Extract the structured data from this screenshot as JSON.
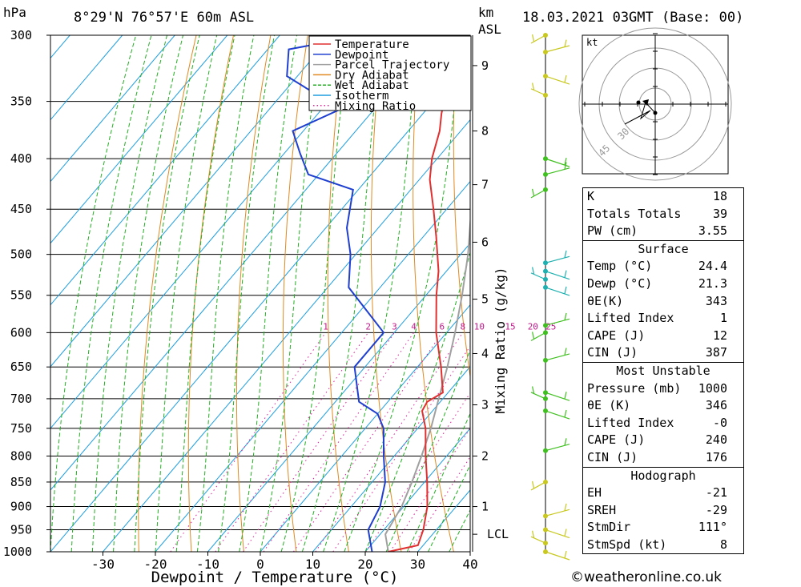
{
  "header": {
    "location": "8°29'N  76°57'E  60m  ASL",
    "datetime": "18.03.2021  03GMT  (Base: 00)",
    "pressure_unit": "hPa",
    "height_unit": "km",
    "height_unit2": "ASL"
  },
  "chart_data": {
    "type": "skew-t",
    "xlabel": "Dewpoint / Temperature (°C)",
    "mixing_ratio_label": "Mixing Ratio (g/kg)",
    "xlim": [
      -40,
      40
    ],
    "x_ticks": [
      "-30",
      "-20",
      "-10",
      "0",
      "10",
      "20",
      "30",
      "40"
    ],
    "pressure_levels": [
      300,
      350,
      400,
      450,
      500,
      550,
      600,
      650,
      700,
      750,
      800,
      850,
      900,
      950,
      1000
    ],
    "height_ticks_km": [
      {
        "label": "9",
        "p": 322
      },
      {
        "label": "8",
        "p": 375
      },
      {
        "label": "7",
        "p": 425
      },
      {
        "label": "6",
        "p": 486
      },
      {
        "label": "5",
        "p": 555
      },
      {
        "label": "4",
        "p": 630
      },
      {
        "label": "3",
        "p": 710
      },
      {
        "label": "2",
        "p": 800
      },
      {
        "label": "1",
        "p": 900
      },
      {
        "label": "LCL",
        "p": 960
      }
    ],
    "mixing_ratio_values": [
      "1",
      "2",
      "3",
      "4",
      "6",
      "8",
      "10",
      "15",
      "20",
      "25"
    ],
    "legend": [
      {
        "name": "Temperature",
        "color": "#e03030",
        "style": "solid"
      },
      {
        "name": "Dewpoint",
        "color": "#1f3fd0",
        "style": "solid"
      },
      {
        "name": "Parcel Trajectory",
        "color": "#a0a0a0",
        "style": "solid"
      },
      {
        "name": "Dry Adiabat",
        "color": "#e08a20",
        "style": "solid"
      },
      {
        "name": "Wet Adiabat",
        "color": "#20b020",
        "style": "dashed"
      },
      {
        "name": "Isotherm",
        "color": "#1e9ee0",
        "style": "solid"
      },
      {
        "name": "Mixing Ratio",
        "color": "#e0209a",
        "style": "dotted"
      }
    ],
    "temperature": [
      {
        "p": 1000,
        "t": 24.4
      },
      {
        "p": 985,
        "t": 29
      },
      {
        "p": 950,
        "t": 27.5
      },
      {
        "p": 900,
        "t": 24.5
      },
      {
        "p": 850,
        "t": 20.5
      },
      {
        "p": 800,
        "t": 16
      },
      {
        "p": 750,
        "t": 11.5
      },
      {
        "p": 720,
        "t": 8
      },
      {
        "p": 705,
        "t": 7.5
      },
      {
        "p": 690,
        "t": 9
      },
      {
        "p": 650,
        "t": 4.5
      },
      {
        "p": 600,
        "t": -2
      },
      {
        "p": 550,
        "t": -8
      },
      {
        "p": 520,
        "t": -11.5
      },
      {
        "p": 480,
        "t": -17.5
      },
      {
        "p": 450,
        "t": -22.5
      },
      {
        "p": 420,
        "t": -28
      },
      {
        "p": 400,
        "t": -31
      },
      {
        "p": 375,
        "t": -34
      },
      {
        "p": 360,
        "t": -36.5
      },
      {
        "p": 330,
        "t": -41
      },
      {
        "p": 300,
        "t": -47
      }
    ],
    "dewpoint": [
      {
        "p": 1000,
        "t": 21.3
      },
      {
        "p": 950,
        "t": 17
      },
      {
        "p": 900,
        "t": 15.5
      },
      {
        "p": 850,
        "t": 12.5
      },
      {
        "p": 800,
        "t": 8
      },
      {
        "p": 750,
        "t": 3.5
      },
      {
        "p": 725,
        "t": 0
      },
      {
        "p": 705,
        "t": -5.5
      },
      {
        "p": 650,
        "t": -12
      },
      {
        "p": 600,
        "t": -12
      },
      {
        "p": 540,
        "t": -26
      },
      {
        "p": 500,
        "t": -31
      },
      {
        "p": 470,
        "t": -36
      },
      {
        "p": 430,
        "t": -41
      },
      {
        "p": 415,
        "t": -52
      },
      {
        "p": 395,
        "t": -57
      },
      {
        "p": 375,
        "t": -62
      },
      {
        "p": 355,
        "t": -56
      },
      {
        "p": 340,
        "t": -66
      },
      {
        "p": 330,
        "t": -72
      },
      {
        "p": 310,
        "t": -76
      },
      {
        "p": 300,
        "t": -64
      }
    ],
    "parcel": [
      {
        "p": 1000,
        "t": 24.4
      },
      {
        "p": 960,
        "t": 21
      },
      {
        "p": 900,
        "t": 19.6
      },
      {
        "p": 850,
        "t": 17.6
      },
      {
        "p": 800,
        "t": 15.2
      },
      {
        "p": 750,
        "t": 12.5
      },
      {
        "p": 700,
        "t": 9.2
      },
      {
        "p": 650,
        "t": 5.7
      },
      {
        "p": 600,
        "t": 1.6
      },
      {
        "p": 550,
        "t": -3.1
      },
      {
        "p": 500,
        "t": -8.6
      },
      {
        "p": 450,
        "t": -15.3
      },
      {
        "p": 400,
        "t": -23.2
      },
      {
        "p": 365,
        "t": -29.6
      }
    ],
    "wind_barbs_p": [
      300,
      312,
      330,
      345,
      400,
      415,
      430,
      510,
      520,
      530,
      540,
      590,
      600,
      640,
      690,
      700,
      720,
      790,
      850,
      920,
      950,
      980,
      1000
    ]
  },
  "hodograph": {
    "unit": "kt",
    "ring_labels": [
      "30",
      "45"
    ]
  },
  "indices": {
    "general": [
      {
        "label": "K",
        "value": "18"
      },
      {
        "label": "Totals Totals",
        "value": "39"
      },
      {
        "label": "PW (cm)",
        "value": "3.55"
      }
    ],
    "surface_title": "Surface",
    "surface": [
      {
        "label": "Temp (°C)",
        "value": "24.4"
      },
      {
        "label": "Dewp (°C)",
        "value": "21.3"
      },
      {
        "label": "θE(K)",
        "value": "343"
      },
      {
        "label": "Lifted Index",
        "value": "1"
      },
      {
        "label": "CAPE (J)",
        "value": "12"
      },
      {
        "label": "CIN (J)",
        "value": "387"
      }
    ],
    "mu_title": "Most Unstable",
    "most_unstable": [
      {
        "label": "Pressure (mb)",
        "value": "1000"
      },
      {
        "label": "θE (K)",
        "value": "346"
      },
      {
        "label": "Lifted Index",
        "value": "-0"
      },
      {
        "label": "CAPE (J)",
        "value": "240"
      },
      {
        "label": "CIN (J)",
        "value": "176"
      }
    ],
    "hodo_title": "Hodograph",
    "hodograph": [
      {
        "label": "EH",
        "value": "-21"
      },
      {
        "label": "SREH",
        "value": "-29"
      },
      {
        "label": "StmDir",
        "value": "111°"
      },
      {
        "label": "StmSpd (kt)",
        "value": "8"
      }
    ]
  },
  "credit": "©weatheronline.co.uk"
}
